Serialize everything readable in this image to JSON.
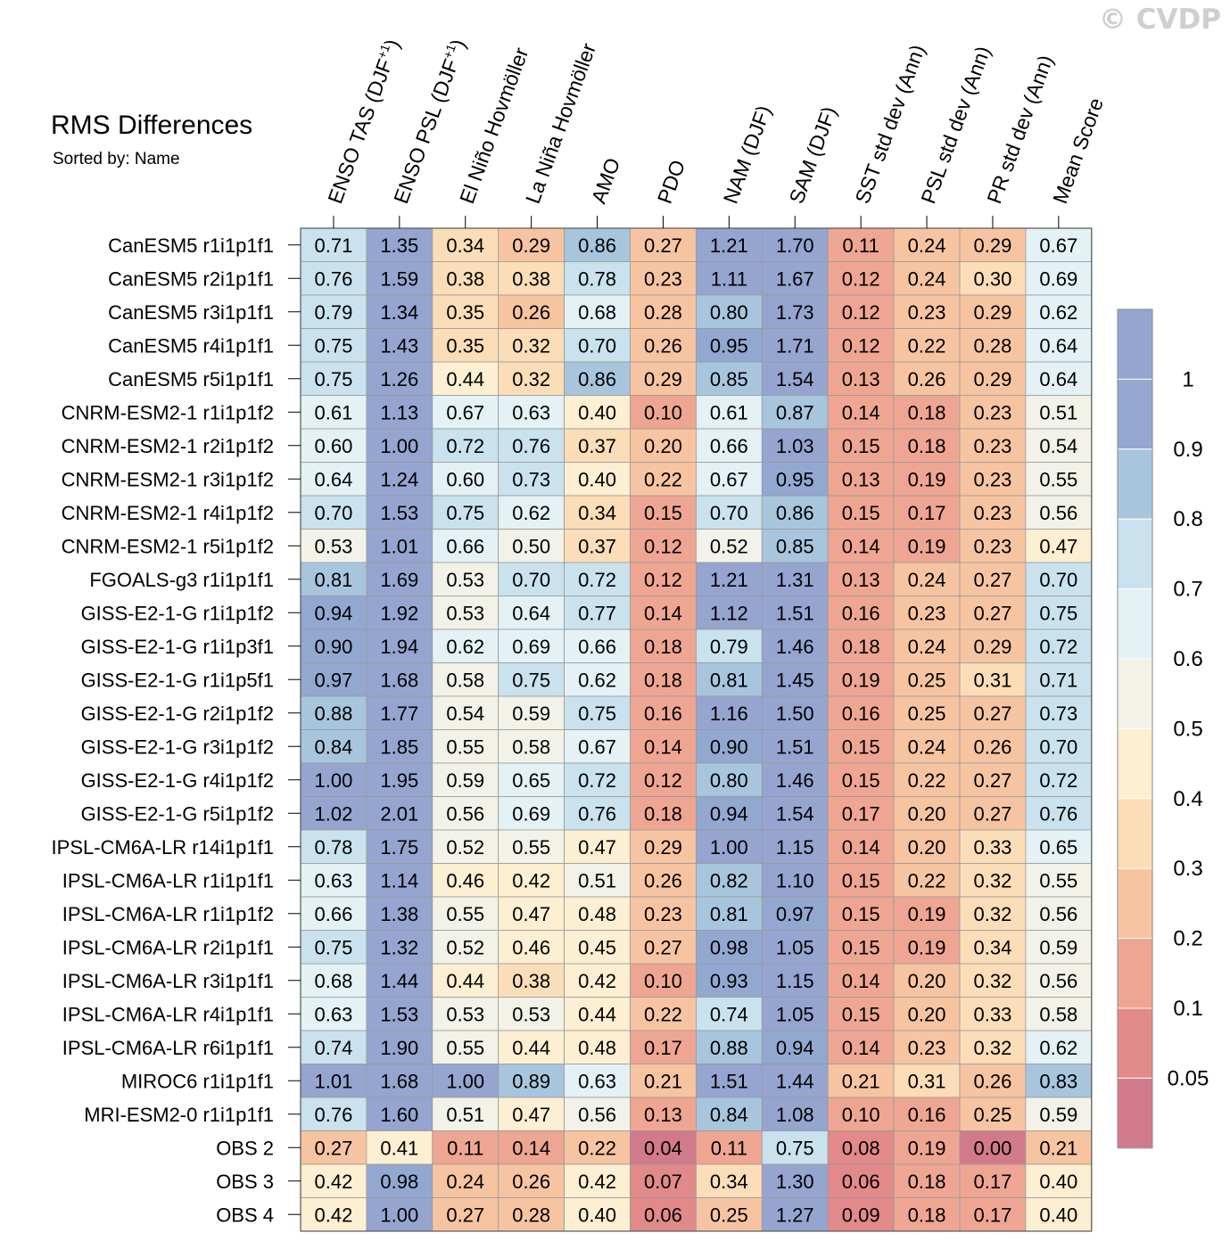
{
  "watermark": "© CVDP",
  "chart_data": {
    "type": "heatmap",
    "title": "RMS Differences",
    "subtitle": "Sorted by: Name",
    "columns": [
      {
        "main": "ENSO TAS (DJF",
        "sup": "+1",
        "tail": ")"
      },
      {
        "main": "ENSO PSL (DJF",
        "sup": "+1",
        "tail": ")"
      },
      {
        "main": "El Niño Hovmöller",
        "sup": "",
        "tail": ""
      },
      {
        "main": "La Niña Hovmöller",
        "sup": "",
        "tail": ""
      },
      {
        "main": "AMO",
        "sup": "",
        "tail": ""
      },
      {
        "main": "PDO",
        "sup": "",
        "tail": ""
      },
      {
        "main": "NAM (DJF)",
        "sup": "",
        "tail": ""
      },
      {
        "main": "SAM (DJF)",
        "sup": "",
        "tail": ""
      },
      {
        "main": "SST std dev (Ann)",
        "sup": "",
        "tail": ""
      },
      {
        "main": "PSL std dev (Ann)",
        "sup": "",
        "tail": ""
      },
      {
        "main": "PR std dev (Ann)",
        "sup": "",
        "tail": ""
      },
      {
        "main": "Mean Score",
        "sup": "",
        "tail": ""
      }
    ],
    "rows": [
      "CanESM5 r1i1p1f1",
      "CanESM5 r2i1p1f1",
      "CanESM5 r3i1p1f1",
      "CanESM5 r4i1p1f1",
      "CanESM5 r5i1p1f1",
      "CNRM-ESM2-1 r1i1p1f2",
      "CNRM-ESM2-1 r2i1p1f2",
      "CNRM-ESM2-1 r3i1p1f2",
      "CNRM-ESM2-1 r4i1p1f2",
      "CNRM-ESM2-1 r5i1p1f2",
      "FGOALS-g3 r1i1p1f1",
      "GISS-E2-1-G r1i1p1f2",
      "GISS-E2-1-G r1i1p3f1",
      "GISS-E2-1-G r1i1p5f1",
      "GISS-E2-1-G r2i1p1f2",
      "GISS-E2-1-G r3i1p1f2",
      "GISS-E2-1-G r4i1p1f2",
      "GISS-E2-1-G r5i1p1f2",
      "IPSL-CM6A-LR r14i1p1f1",
      "IPSL-CM6A-LR r1i1p1f1",
      "IPSL-CM6A-LR r1i1p1f2",
      "IPSL-CM6A-LR r2i1p1f1",
      "IPSL-CM6A-LR r3i1p1f1",
      "IPSL-CM6A-LR r4i1p1f1",
      "IPSL-CM6A-LR r6i1p1f1",
      "MIROC6 r1i1p1f1",
      "MRI-ESM2-0 r1i1p1f1",
      "OBS 2",
      "OBS 3",
      "OBS 4"
    ],
    "values": [
      [
        "0.71",
        "1.35",
        "0.34",
        "0.29",
        "0.86",
        "0.27",
        "1.21",
        "1.70",
        "0.11",
        "0.24",
        "0.29",
        "0.67"
      ],
      [
        "0.76",
        "1.59",
        "0.38",
        "0.38",
        "0.78",
        "0.23",
        "1.11",
        "1.67",
        "0.12",
        "0.24",
        "0.30",
        "0.69"
      ],
      [
        "0.79",
        "1.34",
        "0.35",
        "0.26",
        "0.68",
        "0.28",
        "0.80",
        "1.73",
        "0.12",
        "0.23",
        "0.29",
        "0.62"
      ],
      [
        "0.75",
        "1.43",
        "0.35",
        "0.32",
        "0.70",
        "0.26",
        "0.95",
        "1.71",
        "0.12",
        "0.22",
        "0.28",
        "0.64"
      ],
      [
        "0.75",
        "1.26",
        "0.44",
        "0.32",
        "0.86",
        "0.29",
        "0.85",
        "1.54",
        "0.13",
        "0.26",
        "0.29",
        "0.64"
      ],
      [
        "0.61",
        "1.13",
        "0.67",
        "0.63",
        "0.40",
        "0.10",
        "0.61",
        "0.87",
        "0.14",
        "0.18",
        "0.23",
        "0.51"
      ],
      [
        "0.60",
        "1.00",
        "0.72",
        "0.76",
        "0.37",
        "0.20",
        "0.66",
        "1.03",
        "0.15",
        "0.18",
        "0.23",
        "0.54"
      ],
      [
        "0.64",
        "1.24",
        "0.60",
        "0.73",
        "0.40",
        "0.22",
        "0.67",
        "0.95",
        "0.13",
        "0.19",
        "0.23",
        "0.55"
      ],
      [
        "0.70",
        "1.53",
        "0.75",
        "0.62",
        "0.34",
        "0.15",
        "0.70",
        "0.86",
        "0.15",
        "0.17",
        "0.23",
        "0.56"
      ],
      [
        "0.53",
        "1.01",
        "0.66",
        "0.50",
        "0.37",
        "0.12",
        "0.52",
        "0.85",
        "0.14",
        "0.19",
        "0.23",
        "0.47"
      ],
      [
        "0.81",
        "1.69",
        "0.53",
        "0.70",
        "0.72",
        "0.12",
        "1.21",
        "1.31",
        "0.13",
        "0.24",
        "0.27",
        "0.70"
      ],
      [
        "0.94",
        "1.92",
        "0.53",
        "0.64",
        "0.77",
        "0.14",
        "1.12",
        "1.51",
        "0.16",
        "0.23",
        "0.27",
        "0.75"
      ],
      [
        "0.90",
        "1.94",
        "0.62",
        "0.69",
        "0.66",
        "0.18",
        "0.79",
        "1.46",
        "0.18",
        "0.24",
        "0.29",
        "0.72"
      ],
      [
        "0.97",
        "1.68",
        "0.58",
        "0.75",
        "0.62",
        "0.18",
        "0.81",
        "1.45",
        "0.19",
        "0.25",
        "0.31",
        "0.71"
      ],
      [
        "0.88",
        "1.77",
        "0.54",
        "0.59",
        "0.75",
        "0.16",
        "1.16",
        "1.50",
        "0.16",
        "0.25",
        "0.27",
        "0.73"
      ],
      [
        "0.84",
        "1.85",
        "0.55",
        "0.58",
        "0.67",
        "0.14",
        "0.90",
        "1.51",
        "0.15",
        "0.24",
        "0.26",
        "0.70"
      ],
      [
        "1.00",
        "1.95",
        "0.59",
        "0.65",
        "0.72",
        "0.12",
        "0.80",
        "1.46",
        "0.15",
        "0.22",
        "0.27",
        "0.72"
      ],
      [
        "1.02",
        "2.01",
        "0.56",
        "0.69",
        "0.76",
        "0.18",
        "0.94",
        "1.54",
        "0.17",
        "0.20",
        "0.27",
        "0.76"
      ],
      [
        "0.78",
        "1.75",
        "0.52",
        "0.55",
        "0.47",
        "0.29",
        "1.00",
        "1.15",
        "0.14",
        "0.20",
        "0.33",
        "0.65"
      ],
      [
        "0.63",
        "1.14",
        "0.46",
        "0.42",
        "0.51",
        "0.26",
        "0.82",
        "1.10",
        "0.15",
        "0.22",
        "0.32",
        "0.55"
      ],
      [
        "0.66",
        "1.38",
        "0.55",
        "0.47",
        "0.48",
        "0.23",
        "0.81",
        "0.97",
        "0.15",
        "0.19",
        "0.32",
        "0.56"
      ],
      [
        "0.75",
        "1.32",
        "0.52",
        "0.46",
        "0.45",
        "0.27",
        "0.98",
        "1.05",
        "0.15",
        "0.19",
        "0.34",
        "0.59"
      ],
      [
        "0.68",
        "1.44",
        "0.44",
        "0.38",
        "0.42",
        "0.10",
        "0.93",
        "1.15",
        "0.14",
        "0.20",
        "0.32",
        "0.56"
      ],
      [
        "0.63",
        "1.53",
        "0.53",
        "0.53",
        "0.44",
        "0.22",
        "0.74",
        "1.05",
        "0.15",
        "0.20",
        "0.33",
        "0.58"
      ],
      [
        "0.74",
        "1.90",
        "0.55",
        "0.44",
        "0.48",
        "0.17",
        "0.88",
        "0.94",
        "0.14",
        "0.23",
        "0.32",
        "0.62"
      ],
      [
        "1.01",
        "1.68",
        "1.00",
        "0.89",
        "0.63",
        "0.21",
        "1.51",
        "1.44",
        "0.21",
        "0.31",
        "0.26",
        "0.83"
      ],
      [
        "0.76",
        "1.60",
        "0.51",
        "0.47",
        "0.56",
        "0.13",
        "0.84",
        "1.08",
        "0.10",
        "0.16",
        "0.25",
        "0.59"
      ],
      [
        "0.27",
        "0.41",
        "0.11",
        "0.14",
        "0.22",
        "0.04",
        "0.11",
        "0.75",
        "0.08",
        "0.19",
        "0.00",
        "0.21"
      ],
      [
        "0.42",
        "0.98",
        "0.24",
        "0.26",
        "0.42",
        "0.07",
        "0.34",
        "1.30",
        "0.06",
        "0.18",
        "0.17",
        "0.40"
      ],
      [
        "0.42",
        "1.00",
        "0.27",
        "0.28",
        "0.40",
        "0.06",
        "0.25",
        "1.27",
        "0.09",
        "0.18",
        "0.17",
        "0.40"
      ]
    ],
    "colorbar": {
      "levels": [
        0.05,
        0.1,
        0.2,
        0.3,
        0.4,
        0.5,
        0.6,
        0.7,
        0.8,
        0.9,
        1
      ],
      "tick_labels": [
        "0.05",
        "0.1",
        "0.2",
        "0.3",
        "0.4",
        "0.5",
        "0.6",
        "0.7",
        "0.8",
        "0.9",
        "1"
      ],
      "colors": [
        "#d27a8c",
        "#e2898a",
        "#eea692",
        "#f7c4a2",
        "#fbddb7",
        "#fcefd2",
        "#f3f2e8",
        "#e4f1f5",
        "#c9e2ee",
        "#a8c5de",
        "#92a8d0",
        "#95a5d0"
      ]
    }
  }
}
